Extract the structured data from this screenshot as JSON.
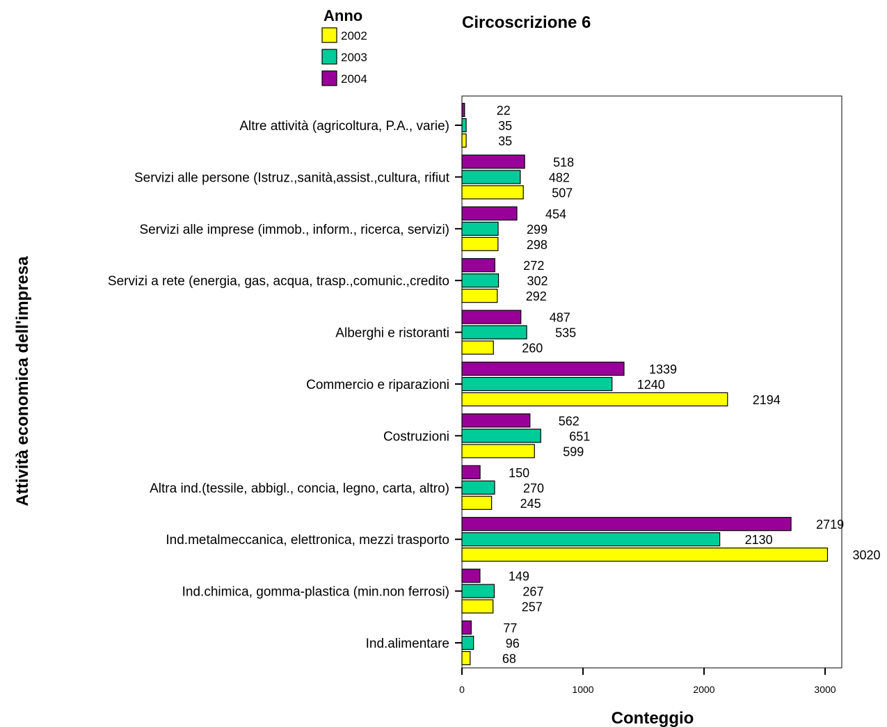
{
  "chart_data": {
    "type": "bar",
    "orientation": "horizontal",
    "title": "Circoscrizione 6",
    "xlabel": "Conteggio",
    "ylabel": "Attività economica dell'impresa",
    "xlim": [
      0,
      3200
    ],
    "xticks": [
      "0",
      "1000",
      "2000",
      "3000"
    ],
    "grid": false,
    "legend": {
      "title": "Anno",
      "placement": "top-left",
      "entries": [
        {
          "label": "2002",
          "color": "#ffff00"
        },
        {
          "label": "2003",
          "color": "#00cc99"
        },
        {
          "label": "2004",
          "color": "#990099"
        }
      ]
    },
    "categories": [
      "Altre attività  (agricoltura, P.A., varie)",
      "Servizi alle persone (Istruz.,sanità,assist.,cultura, rifiut",
      "Servizi alle imprese (immob., inform., ricerca, servizi)",
      "Servizi a rete (energia, gas, acqua, trasp.,comunic.,credito",
      "Alberghi e ristoranti",
      "Commercio e riparazioni",
      "Costruzioni",
      "Altra ind.(tessile, abbigl., concia, legno, carta, altro)",
      "Ind.metalmeccanica, elettronica, mezzi trasporto",
      "Ind.chimica, gomma-plastica (min.non ferrosi)",
      "Ind.alimentare"
    ],
    "series": [
      {
        "name": "2004",
        "color": "#990099",
        "values": [
          22,
          518,
          454,
          272,
          487,
          1339,
          562,
          150,
          2719,
          149,
          77
        ]
      },
      {
        "name": "2003",
        "color": "#00cc99",
        "values": [
          35,
          482,
          299,
          302,
          535,
          1240,
          651,
          270,
          2130,
          267,
          96
        ]
      },
      {
        "name": "2002",
        "color": "#ffff00",
        "values": [
          35,
          507,
          298,
          292,
          260,
          2194,
          599,
          245,
          3020,
          257,
          68
        ]
      }
    ]
  }
}
